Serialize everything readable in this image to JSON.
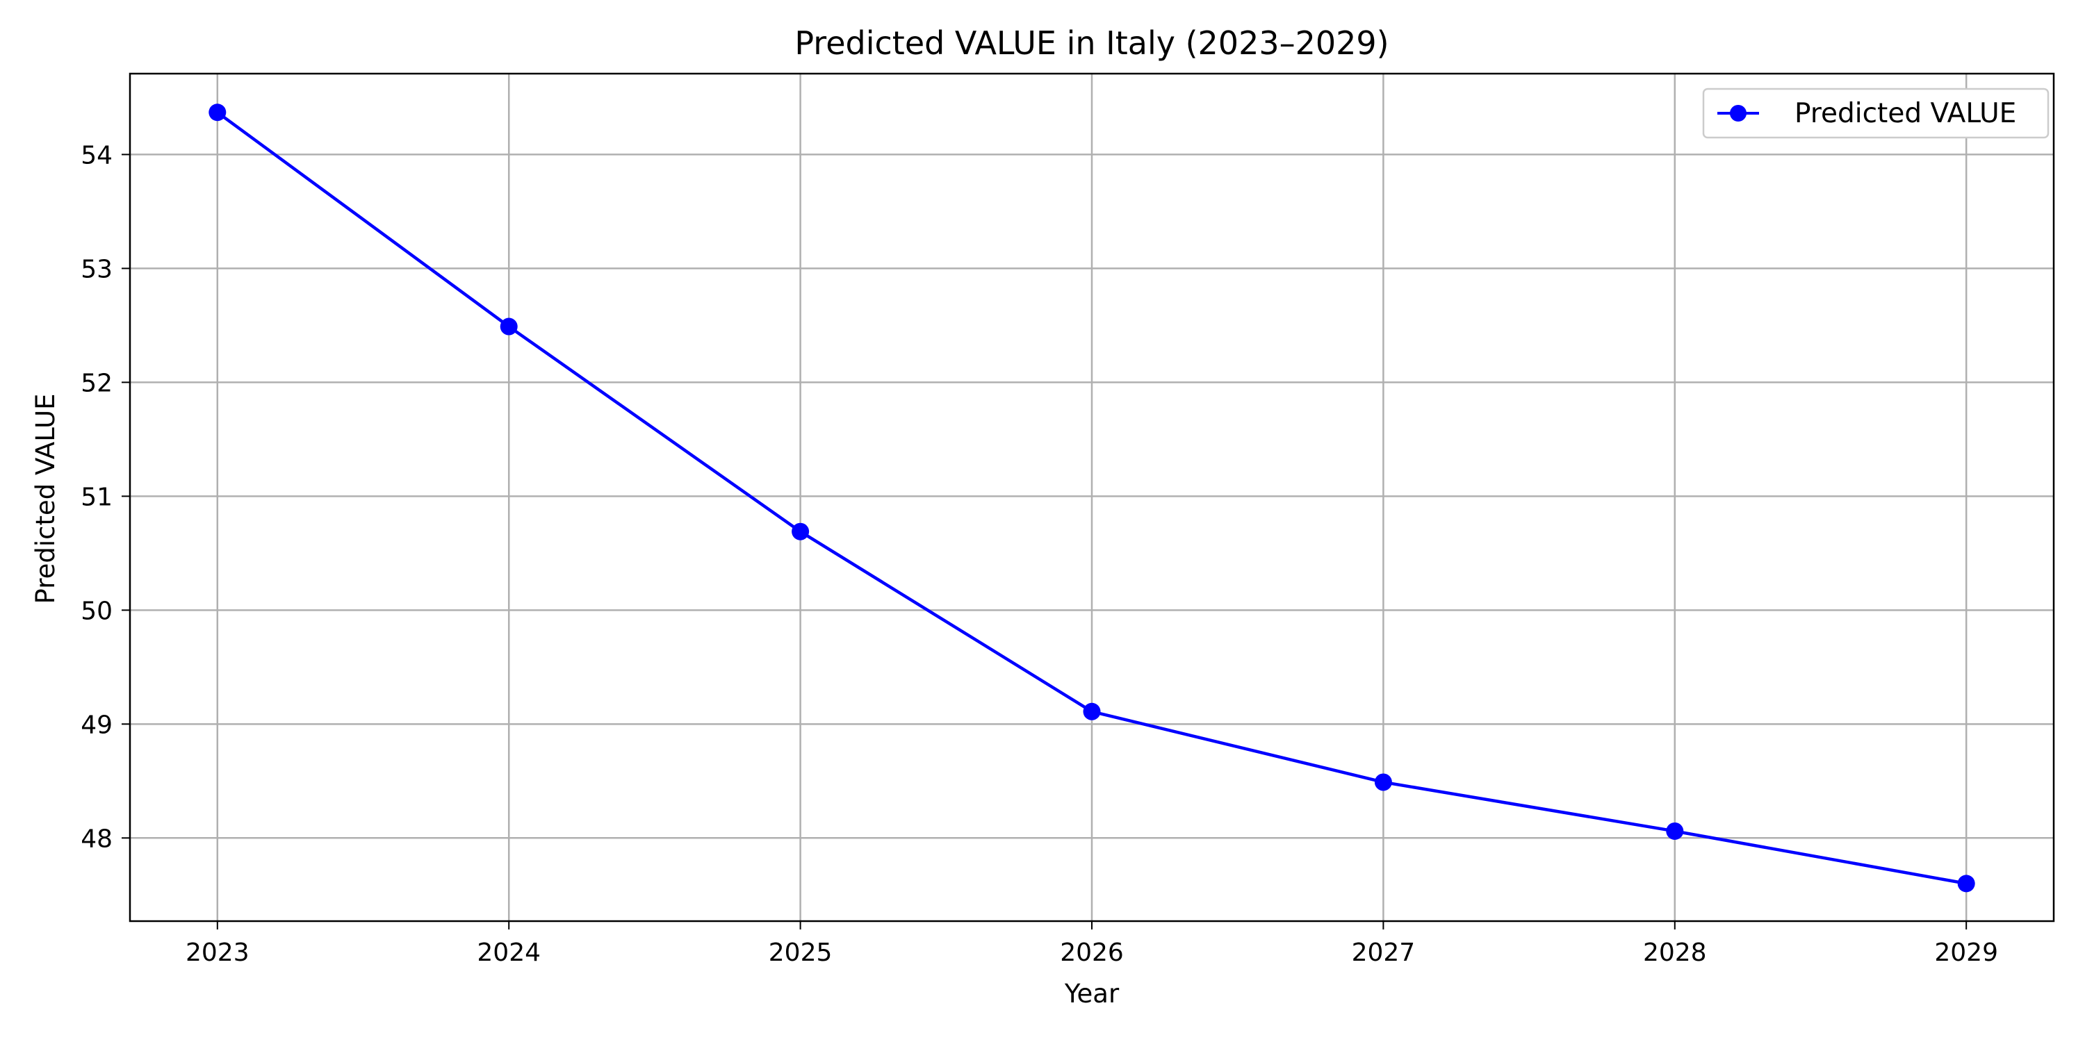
{
  "chart_data": {
    "type": "line",
    "title": "Predicted VALUE in Italy (2023–2029)",
    "xlabel": "Year",
    "ylabel": "Predicted VALUE",
    "x": [
      2023,
      2024,
      2025,
      2026,
      2027,
      2028,
      2029
    ],
    "x_tick_labels": [
      "2023",
      "2024",
      "2025",
      "2026",
      "2027",
      "2028",
      "2029"
    ],
    "y_ticks": [
      48,
      49,
      50,
      51,
      52,
      53,
      54
    ],
    "y_tick_labels": [
      "48",
      "49",
      "50",
      "51",
      "52",
      "53",
      "54"
    ],
    "xlim": [
      2022.7,
      2029.3
    ],
    "ylim": [
      47.27,
      54.71
    ],
    "grid": true,
    "legend_position": "top-right",
    "series": [
      {
        "name": "Predicted VALUE",
        "color": "#0000ff",
        "marker": "circle",
        "values": [
          54.37,
          52.49,
          50.69,
          49.11,
          48.49,
          48.06,
          47.6
        ]
      }
    ]
  }
}
